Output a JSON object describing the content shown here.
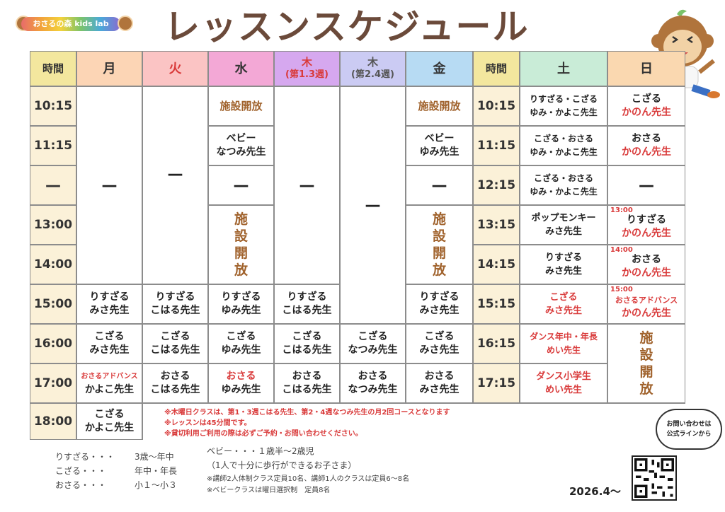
{
  "logo": {
    "text": "おさるの森 kids lab"
  },
  "title": "レッスンスケジュール",
  "headers": {
    "time1": "時間",
    "mon": "月",
    "tue": "火",
    "wed": "水",
    "thu13_day": "木",
    "thu13_sub": "(第1.3週)",
    "thu24_day": "木",
    "thu24_sub": "(第2.4週)",
    "fri": "金",
    "time2": "時間",
    "sat": "土",
    "sun": "日"
  },
  "colors": {
    "mon": "#fcd5b5",
    "tue": "#fbc4c4",
    "wed": "#f3a8d6",
    "thu13": "#d6a8ef",
    "thu24": "#cbcbf3",
    "fri": "#b7dbf3",
    "time": "#f3e79e",
    "sat": "#c9ecd7",
    "sun": "#fad8b0"
  },
  "times_left": [
    "10:15",
    "11:15",
    "—",
    "13:00",
    "14:00",
    "15:00",
    "16:00",
    "17:00",
    "18:00"
  ],
  "times_right": [
    "10:15",
    "11:15",
    "12:15",
    "13:15",
    "14:15",
    "15:15",
    "16:15",
    "17:15"
  ],
  "dash": "—",
  "open_short": "施設開放",
  "open_vertical": "施\n設\n開\n放",
  "mon": {
    "r15": [
      "りすざる",
      "みさ先生"
    ],
    "r16": [
      "こざる",
      "みさ先生"
    ],
    "r17": [
      "おさるアドバンス",
      "かよこ先生"
    ],
    "r18": [
      "こざる",
      "かよこ先生"
    ]
  },
  "tue": {
    "r15": [
      "りすざる",
      "こはる先生"
    ],
    "r16": [
      "こざる",
      "こはる先生"
    ],
    "r17": [
      "おさる",
      "こはる先生"
    ]
  },
  "wed": {
    "r11": [
      "ベビー",
      "なつみ先生"
    ],
    "r15": [
      "りすざる",
      "ゆみ先生"
    ],
    "r16": [
      "こざる",
      "ゆみ先生"
    ],
    "r17": [
      "おさる",
      "ゆみ先生"
    ]
  },
  "thu13": {
    "r15": [
      "りすざる",
      "こはる先生"
    ],
    "r16": [
      "こざる",
      "こはる先生"
    ],
    "r17": [
      "おさる",
      "こはる先生"
    ]
  },
  "thu24": {
    "r16": [
      "こざる",
      "なつみ先生"
    ],
    "r17": [
      "おさる",
      "なつみ先生"
    ]
  },
  "fri": {
    "r11": [
      "ベビー",
      "ゆみ先生"
    ],
    "r15": [
      "りすざる",
      "みさ先生"
    ],
    "r16": [
      "こざる",
      "みさ先生"
    ],
    "r17": [
      "おさる",
      "みさ先生"
    ]
  },
  "sat": {
    "r1": [
      "りすざる・こざる",
      "ゆみ・かよこ先生"
    ],
    "r2": [
      "こざる・おさる",
      "ゆみ・かよこ先生"
    ],
    "r3": [
      "こざる・おさる",
      "ゆみ・かよこ先生"
    ],
    "r4": [
      "ポップモンキー",
      "みさ先生"
    ],
    "r5": [
      "りすざる",
      "みさ先生"
    ],
    "r6": [
      "こざる",
      "みさ先生"
    ],
    "r7": [
      "ダンス年中・年長",
      "めい先生"
    ],
    "r8": [
      "ダンス小学生",
      "めい先生"
    ]
  },
  "sun": {
    "r1": [
      "こざる",
      "かのん先生"
    ],
    "r2": [
      "おさる",
      "かのん先生"
    ],
    "r4": {
      "time": "13:00",
      "cls": "りすざる",
      "teacher": "かのん先生"
    },
    "r5": {
      "time": "14:00",
      "cls": "おさる",
      "teacher": "かのん先生"
    },
    "r6": {
      "time": "15:00",
      "cls": "おさるアドバンス",
      "teacher": "かのん先生"
    }
  },
  "notes": [
    "※木曜日クラスは、第1・3週こはる先生、第2・4週なつみ先生の月2回コースとなります",
    "※レッスンは45分間です。",
    "※貸切利用ご利用の際は必ずご予約・お問い合わせください。"
  ],
  "legend_classes": [
    {
      "name": "りすざる・・・",
      "age": "3歳〜年中"
    },
    {
      "name": "こざる・・・",
      "age": "年中・年長"
    },
    {
      "name": "おさる・・・",
      "age": "小１〜小３"
    }
  ],
  "legend_baby": {
    "line1": "ベビー・・・１歳半〜2歳児",
    "line2": "（1人で十分に歩行ができるお子さま）"
  },
  "legend_notes": [
    "※講師2人体制クラス定員10名、講師1人のクラスは定員6〜8名",
    "※ベビークラスは曜日選択制　定員8名"
  ],
  "contact": {
    "line1": "お問い合わせは",
    "line2": "公式ラインから"
  },
  "date": "2026.4〜"
}
